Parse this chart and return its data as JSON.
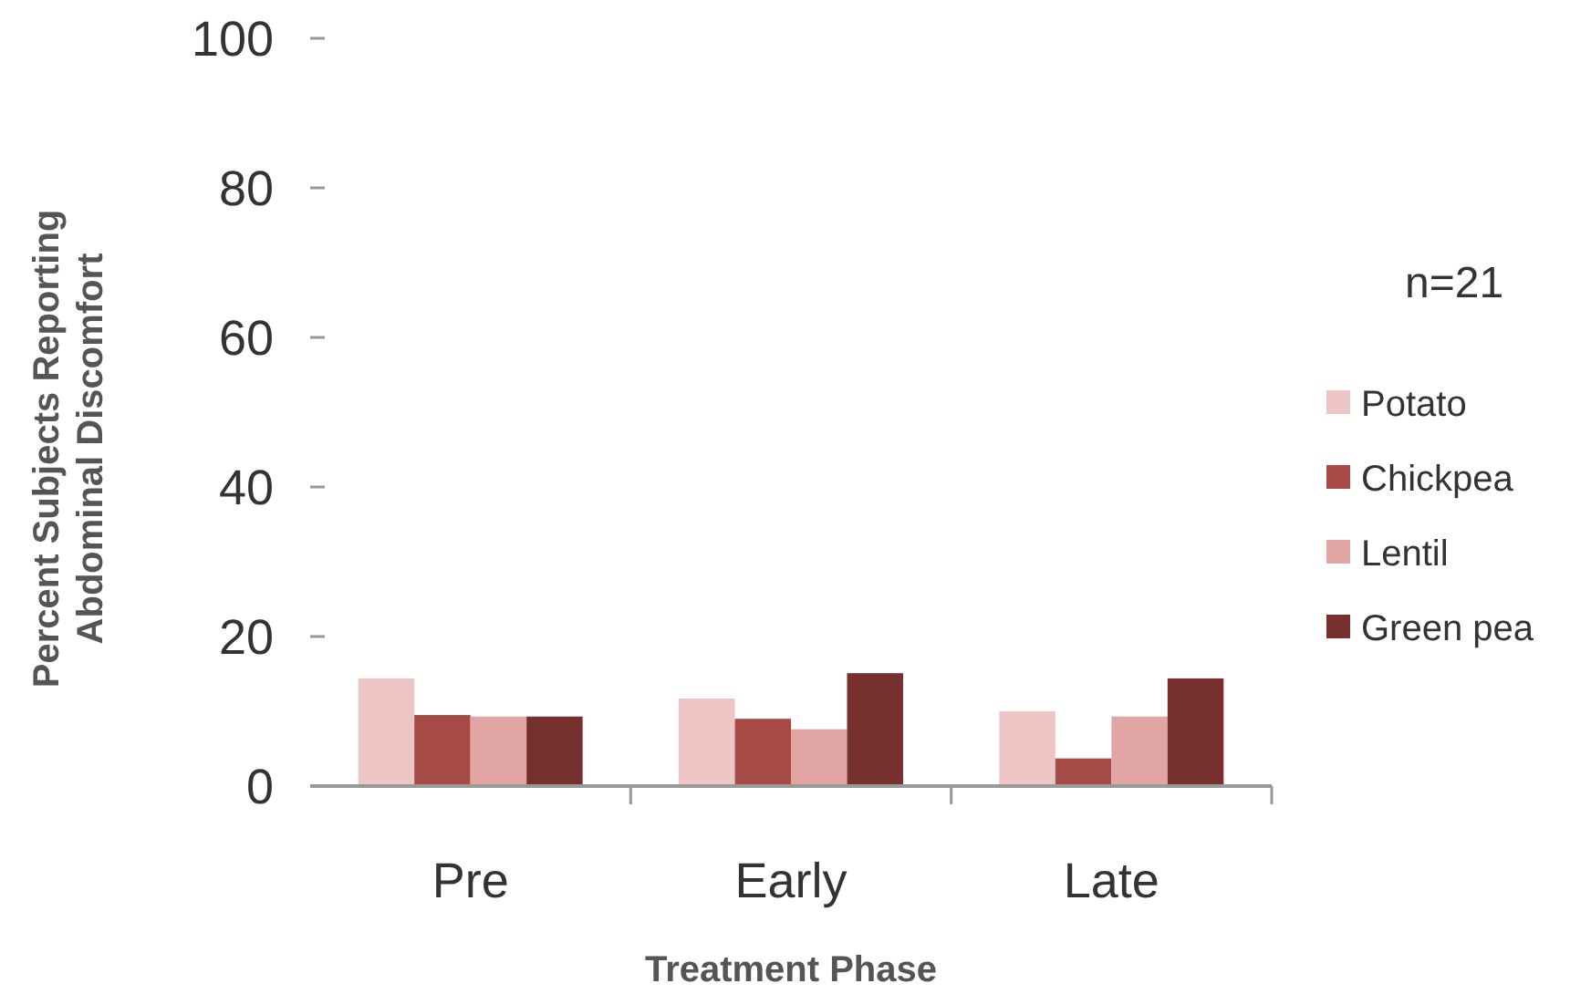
{
  "chart_data": {
    "type": "bar",
    "xlabel": "Treatment Phase",
    "ylabel": "Percent Subjects Reporting Abdominal Discomfort",
    "categories": [
      "Pre",
      "Early",
      "Late"
    ],
    "series": [
      {
        "name": "Potato",
        "color": "#ecc5c4",
        "values": [
          14.4,
          11.7,
          10
        ]
      },
      {
        "name": "Chickpea",
        "color": "#a54a44",
        "values": [
          9.5,
          9,
          3.7
        ]
      },
      {
        "name": "Lentil",
        "color": "#e1a6a4",
        "values": [
          9.3,
          7.6,
          9.3
        ]
      },
      {
        "name": "Green pea",
        "color": "#76302e",
        "values": [
          9.3,
          15.1,
          14.4
        ]
      }
    ],
    "ylim": [
      0,
      100
    ],
    "yticks": [
      0,
      20,
      40,
      60,
      80,
      100
    ],
    "grid": false,
    "legend": "right",
    "annotations": [
      "n=21"
    ]
  }
}
